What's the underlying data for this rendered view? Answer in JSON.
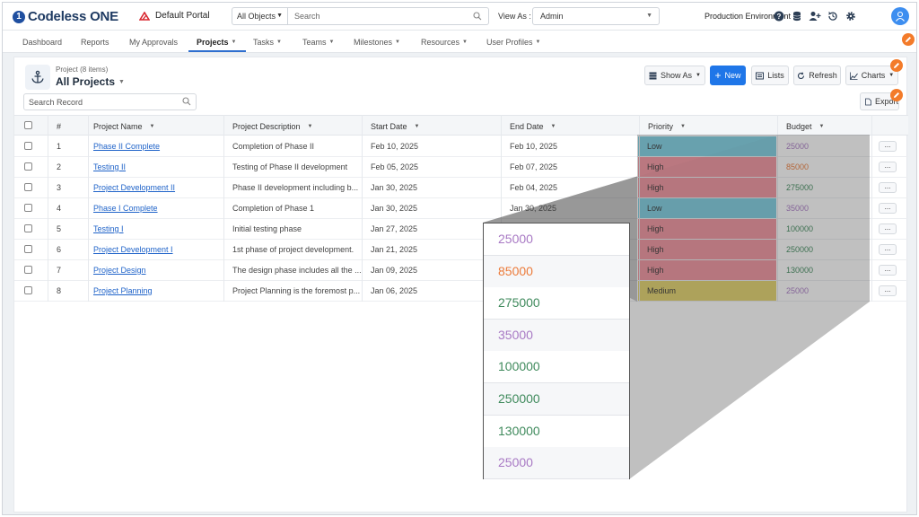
{
  "app": {
    "brand_name": "Codeless",
    "brand_suffix": "ONE",
    "portal_name": "Default Portal",
    "object_selector": "All Objects",
    "search_placeholder": "Search",
    "view_as_label": "View As :",
    "view_as_value": "Admin",
    "environment": "Production Environment"
  },
  "nav": {
    "items": [
      {
        "label": "Dashboard"
      },
      {
        "label": "Reports"
      },
      {
        "label": "My Approvals"
      },
      {
        "label": "Projects"
      },
      {
        "label": "Tasks"
      },
      {
        "label": "Teams"
      },
      {
        "label": "Milestones"
      },
      {
        "label": "Resources"
      },
      {
        "label": "User Profiles"
      }
    ],
    "active": "Projects"
  },
  "page": {
    "count_label": "Project (8 items)",
    "title": "All Projects",
    "search_placeholder": "Search Record",
    "buttons": {
      "show_as": "Show As",
      "new": "New",
      "lists": "Lists",
      "refresh": "Refresh",
      "charts": "Charts",
      "export": "Export"
    }
  },
  "table": {
    "columns": [
      "#",
      "Project Name",
      "Project Description",
      "Start Date",
      "End Date",
      "Priority",
      "Budget"
    ],
    "rows": [
      {
        "num": "1",
        "name": "Phase II Complete",
        "desc": "Completion of Phase II",
        "start": "Feb 10, 2025",
        "end": "Feb 10, 2025",
        "priority": "Low",
        "budget": "25000"
      },
      {
        "num": "2",
        "name": "Testing II",
        "desc": "Testing of Phase II development",
        "start": "Feb 05, 2025",
        "end": "Feb 07, 2025",
        "priority": "High",
        "budget": "85000"
      },
      {
        "num": "3",
        "name": "Project Development II",
        "desc": "Phase II development including b...",
        "start": "Jan 30, 2025",
        "end": "Feb 04, 2025",
        "priority": "High",
        "budget": "275000"
      },
      {
        "num": "4",
        "name": "Phase I Complete",
        "desc": "Completion of Phase 1",
        "start": "Jan 30, 2025",
        "end": "Jan 30, 2025",
        "priority": "Low",
        "budget": "35000"
      },
      {
        "num": "5",
        "name": "Testing I",
        "desc": "Initial testing phase",
        "start": "Jan 27, 2025",
        "end": "",
        "priority": "High",
        "budget": "100000"
      },
      {
        "num": "6",
        "name": "Project Development I",
        "desc": "1st phase of project development.",
        "start": "Jan 21, 2025",
        "end": "",
        "priority": "High",
        "budget": "250000"
      },
      {
        "num": "7",
        "name": "Project Design",
        "desc": "The design phase includes all the ...",
        "start": "Jan 09, 2025",
        "end": "",
        "priority": "High",
        "budget": "130000"
      },
      {
        "num": "8",
        "name": "Project Planning",
        "desc": "Project Planning is the foremost p...",
        "start": "Jan 06, 2025",
        "end": "",
        "priority": "Medium",
        "budget": "25000"
      }
    ],
    "more_label": "..."
  },
  "zoom": {
    "values": [
      "25000",
      "85000",
      "275000",
      "35000",
      "100000",
      "250000",
      "130000",
      "25000"
    ]
  },
  "colors": {
    "accent": "#1f76e8",
    "priority_low": "#7ccde0",
    "priority_high": "#f1939e",
    "priority_medium": "#e3d36a",
    "budget_purple": "#a879c4",
    "budget_orange": "#ec7b3a",
    "budget_green": "#3f8a5c"
  }
}
